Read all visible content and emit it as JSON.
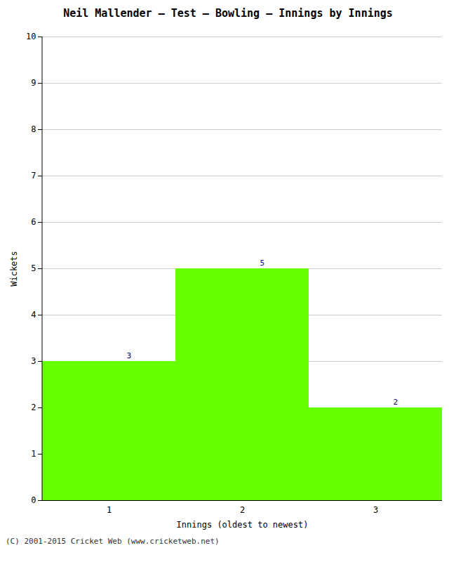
{
  "chart_data": {
    "type": "bar",
    "title": "Neil Mallender – Test – Bowling – Innings by Innings",
    "xlabel": "Innings (oldest to newest)",
    "ylabel": "Wickets",
    "categories": [
      "1",
      "2",
      "3"
    ],
    "values": [
      3,
      5,
      2
    ],
    "color": "#66ff00",
    "ylim": [
      0,
      10
    ],
    "yticks": [
      0,
      1,
      2,
      3,
      4,
      5,
      6,
      7,
      8,
      9,
      10
    ],
    "grid": true,
    "data_labels": true,
    "footer": "(C) 2001-2015 Cricket Web (www.cricketweb.net)"
  }
}
